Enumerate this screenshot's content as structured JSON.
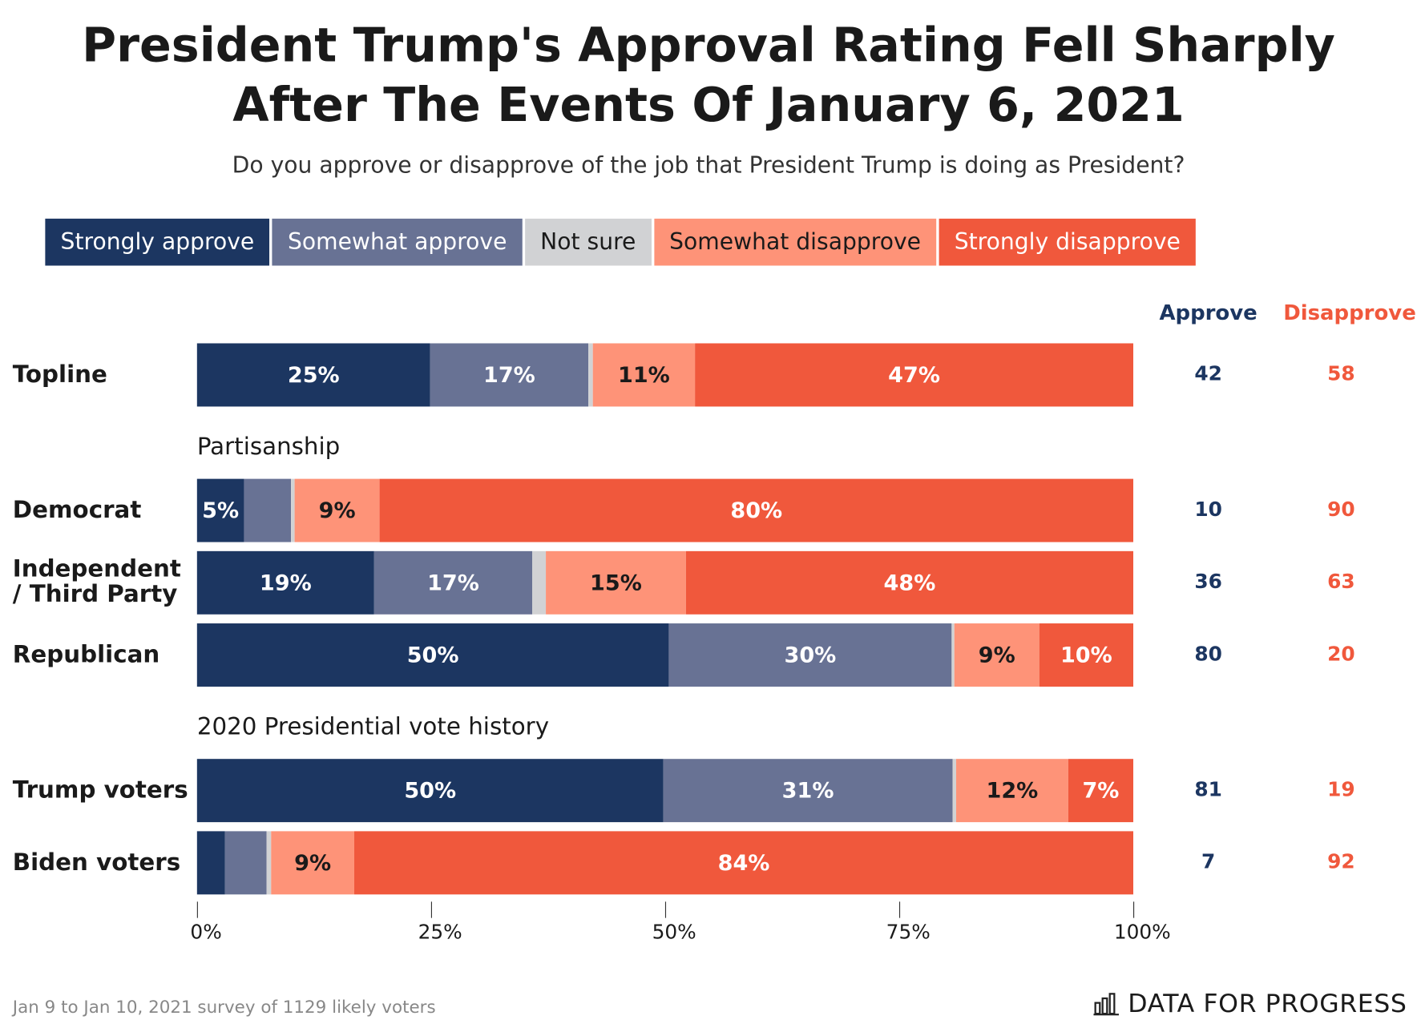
{
  "title_lines": [
    "President Trump's Approval Rating Fell Sharply",
    "After The Events Of January 6, 2021"
  ],
  "subtitle": "Do you approve or disapprove of the job that President Trump is doing as President?",
  "chart_data": {
    "type": "bar",
    "orientation": "horizontal-stacked",
    "legend": [
      {
        "name": "Strongly approve",
        "color": "#1c3661",
        "text_color": "#ffffff"
      },
      {
        "name": "Somewhat approve",
        "color": "#687294",
        "text_color": "#ffffff"
      },
      {
        "name": "Not sure",
        "color": "#d1d2d4",
        "text_color": "#1a1a1a"
      },
      {
        "name": "Somewhat disapprove",
        "color": "#fe9378",
        "text_color": "#1a1a1a"
      },
      {
        "name": "Strongly disapprove",
        "color": "#f0583c",
        "text_color": "#ffffff"
      }
    ],
    "legend_placement": "top",
    "rows": [
      {
        "label": "Topline",
        "values": [
          25,
          17,
          0.4,
          11,
          47
        ],
        "labels": [
          "25%",
          "17%",
          "",
          "11%",
          "47%"
        ],
        "approve": "42",
        "disapprove": "58"
      },
      {
        "label": "Democrat",
        "values": [
          5,
          5,
          0.4,
          9,
          80
        ],
        "labels": [
          "5%",
          "",
          "",
          "9%",
          "80%"
        ],
        "approve": "10",
        "disapprove": "90"
      },
      {
        "label": "Independent / Third Party",
        "values": [
          19,
          17,
          1.4,
          15,
          48
        ],
        "labels": [
          "19%",
          "17%",
          "",
          "15%",
          "48%"
        ],
        "approve": "36",
        "disapprove": "63"
      },
      {
        "label": "Republican",
        "values": [
          50,
          30,
          0.3,
          9,
          10
        ],
        "labels": [
          "50%",
          "30%",
          "",
          "9%",
          "10%"
        ],
        "approve": "80",
        "disapprove": "20"
      },
      {
        "label": "Trump voters",
        "values": [
          50,
          31,
          0.4,
          12,
          7
        ],
        "labels": [
          "50%",
          "31%",
          "",
          "12%",
          "7%"
        ],
        "approve": "81",
        "disapprove": "19"
      },
      {
        "label": "Biden voters",
        "values": [
          3,
          4.5,
          0.5,
          9,
          84
        ],
        "labels": [
          "",
          "",
          "",
          "9%",
          "84%"
        ],
        "approve": "7",
        "disapprove": "92"
      }
    ],
    "sections": [
      "Partisanship",
      "2020 Presidential vote history"
    ],
    "xlim": [
      0,
      100
    ],
    "xticks": [
      "0%",
      "25%",
      "50%",
      "75%",
      "100%"
    ],
    "approve_header": "Approve",
    "disapprove_header": "Disapprove",
    "approve_color": "#1c3661",
    "disapprove_color": "#f0583c"
  },
  "footer": {
    "note": "Jan 9 to Jan 10, 2021 survey of 1129 likely voters",
    "logo_text": "DATA FOR PROGRESS"
  }
}
